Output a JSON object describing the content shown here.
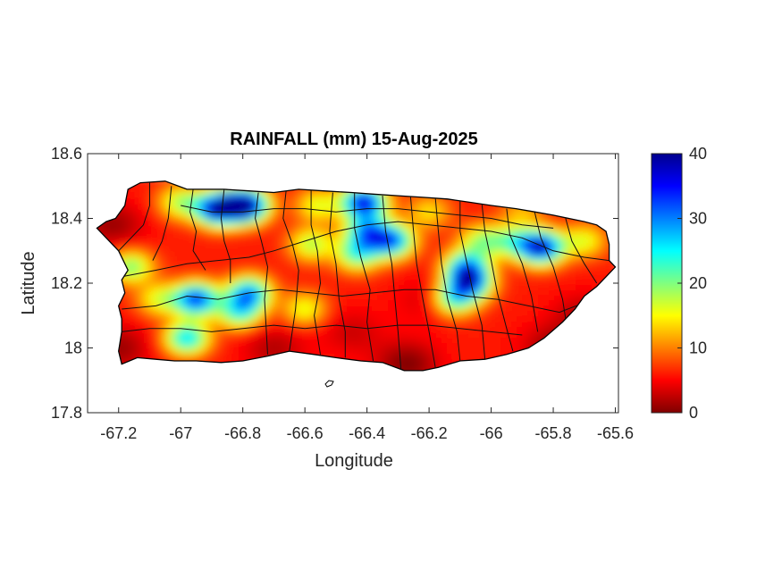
{
  "chart_data": {
    "type": "heatmap",
    "title": "RAINFALL (mm) 15-Aug-2025",
    "xlabel": "Longitude",
    "ylabel": "Latitude",
    "xlim": [
      -67.3,
      -65.59
    ],
    "ylim": [
      17.8,
      18.6
    ],
    "x_ticks": [
      -67.2,
      -67.0,
      -66.8,
      -66.6,
      -66.4,
      -66.2,
      -66.0,
      -65.8,
      -65.6
    ],
    "x_tick_labels": [
      "-67.2",
      "-67",
      "-66.8",
      "-66.6",
      "-66.4",
      "-66.2",
      "-66",
      "-65.8",
      "-65.6"
    ],
    "y_ticks": [
      17.8,
      18.0,
      18.2,
      18.4,
      18.6
    ],
    "y_tick_labels": [
      "17.8",
      "18",
      "18.2",
      "18.4",
      "18.6"
    ],
    "colorbar": {
      "colormap": "jet",
      "range": [
        0,
        40
      ],
      "ticks": [
        0,
        10,
        20,
        30,
        40
      ],
      "tick_labels": [
        "0",
        "10",
        "20",
        "30",
        "40"
      ]
    },
    "grid": false,
    "rainfall_field": {
      "background_mm": 6,
      "maxima": [
        {
          "lon": -66.88,
          "lat": 18.43,
          "mm": 38
        },
        {
          "lon": -66.79,
          "lat": 18.44,
          "mm": 40
        },
        {
          "lon": -66.95,
          "lat": 18.15,
          "mm": 33
        },
        {
          "lon": -66.98,
          "lat": 18.03,
          "mm": 26
        },
        {
          "lon": -66.78,
          "lat": 18.17,
          "mm": 28
        },
        {
          "lon": -66.81,
          "lat": 18.11,
          "mm": 22
        },
        {
          "lon": -66.41,
          "lat": 18.45,
          "mm": 36
        },
        {
          "lon": -66.4,
          "lat": 18.36,
          "mm": 26
        },
        {
          "lon": -66.32,
          "lat": 18.33,
          "mm": 30
        },
        {
          "lon": -66.43,
          "lat": 18.29,
          "mm": 22
        },
        {
          "lon": -66.08,
          "lat": 18.25,
          "mm": 26
        },
        {
          "lon": -66.07,
          "lat": 18.2,
          "mm": 30
        },
        {
          "lon": -66.12,
          "lat": 18.15,
          "mm": 22
        },
        {
          "lon": -65.84,
          "lat": 18.31,
          "mm": 37
        },
        {
          "lon": -65.93,
          "lat": 18.33,
          "mm": 18
        },
        {
          "lon": -66.03,
          "lat": 18.33,
          "mm": 18
        },
        {
          "lon": -67.16,
          "lat": 18.25,
          "mm": 20
        },
        {
          "lon": -67.07,
          "lat": 18.15,
          "mm": 16
        },
        {
          "lon": -66.58,
          "lat": 18.32,
          "mm": 18
        },
        {
          "lon": -66.6,
          "lat": 18.12,
          "mm": 16
        },
        {
          "lon": -66.56,
          "lat": 18.44,
          "mm": 16
        },
        {
          "lon": -66.2,
          "lat": 18.42,
          "mm": 14
        },
        {
          "lon": -65.9,
          "lat": 18.42,
          "mm": 12
        },
        {
          "lon": -65.7,
          "lat": 18.33,
          "mm": 16
        },
        {
          "lon": -67.0,
          "lat": 18.45,
          "mm": 18
        }
      ],
      "minima": [
        {
          "lon": -67.22,
          "lat": 18.38,
          "mm": 1
        },
        {
          "lon": -67.2,
          "lat": 18.0,
          "mm": 1
        },
        {
          "lon": -66.27,
          "lat": 17.95,
          "mm": 0
        },
        {
          "lon": -65.8,
          "lat": 18.0,
          "mm": 1
        },
        {
          "lon": -65.7,
          "lat": 18.1,
          "mm": 2
        },
        {
          "lon": -66.7,
          "lat": 18.0,
          "mm": 2
        },
        {
          "lon": -66.2,
          "lat": 18.15,
          "mm": 3
        },
        {
          "lon": -66.45,
          "lat": 18.05,
          "mm": 3
        }
      ]
    }
  }
}
